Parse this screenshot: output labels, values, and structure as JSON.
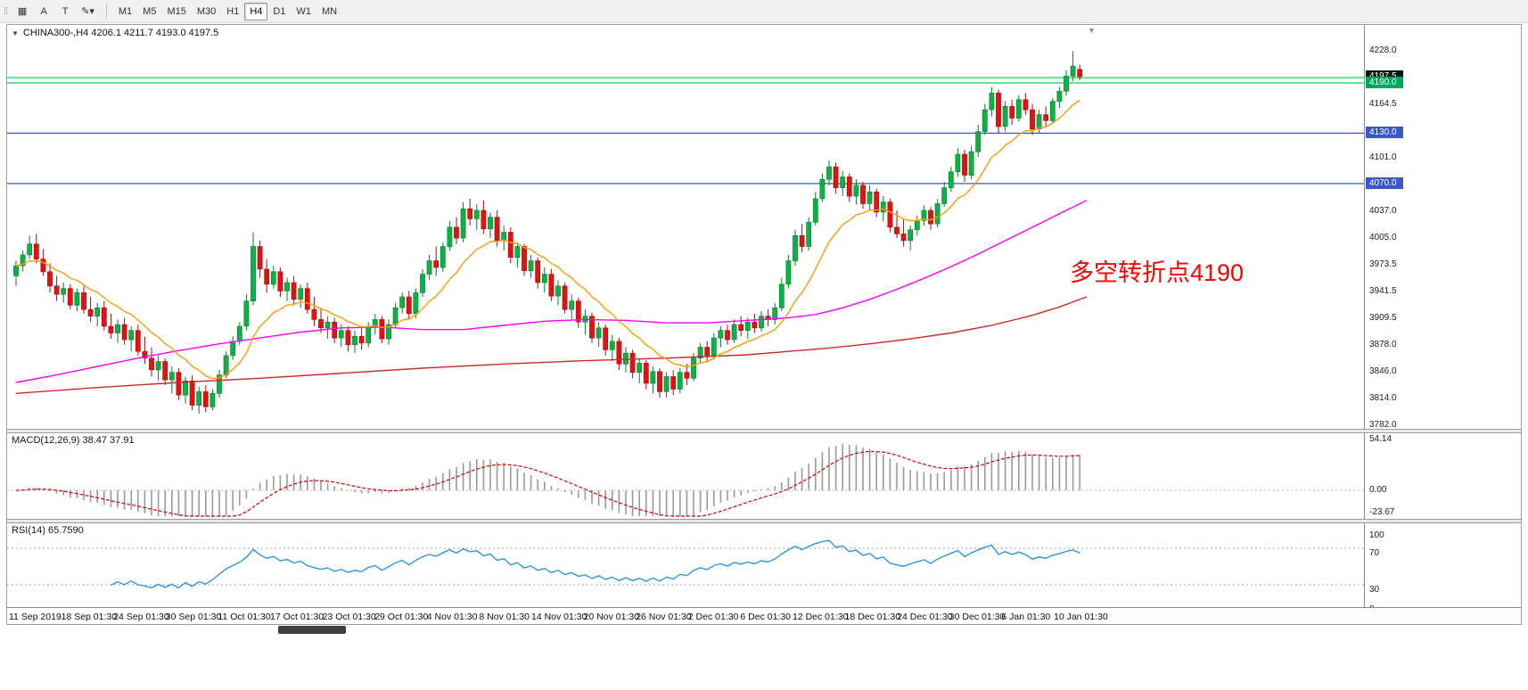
{
  "toolbar": {
    "grip": "⁞⁞",
    "buttons": [
      {
        "name": "symbols-grid-button",
        "glyph": "▦"
      },
      {
        "name": "cursor-tool-button",
        "glyph": "A"
      },
      {
        "name": "text-tool-button",
        "glyph": "T"
      },
      {
        "name": "draw-color-button",
        "glyph": "✎",
        "caret": "▾"
      }
    ],
    "timeframes": [
      {
        "label": "M1",
        "active": false
      },
      {
        "label": "M5",
        "active": false
      },
      {
        "label": "M15",
        "active": false
      },
      {
        "label": "M30",
        "active": false
      },
      {
        "label": "H1",
        "active": false
      },
      {
        "label": "H4",
        "active": true
      },
      {
        "label": "D1",
        "active": false
      },
      {
        "label": "W1",
        "active": false
      },
      {
        "label": "MN",
        "active": false
      }
    ]
  },
  "chart": {
    "title": "CHINA300-,H4 4206.1 4211.7 4193.0 4197.5",
    "icons": {
      "collapse": "▼",
      "shift_marker": "▼"
    },
    "annotation": {
      "text": "多空转折点4190",
      "color": "#ff0000"
    },
    "price_axis": {
      "labels": [
        {
          "text": "4228.0",
          "value": 4228.0
        },
        {
          "text": "4164.5",
          "value": 4164.5
        },
        {
          "text": "4101.0",
          "value": 4101.0
        },
        {
          "text": "4037.0",
          "value": 4037.0
        },
        {
          "text": "4005.0",
          "value": 4005.0
        },
        {
          "text": "3973.5",
          "value": 3973.5
        },
        {
          "text": "3941.5",
          "value": 3941.5
        },
        {
          "text": "3909.5",
          "value": 3909.5
        },
        {
          "text": "3878.0",
          "value": 3878.0
        },
        {
          "text": "3846.0",
          "value": 3846.0
        },
        {
          "text": "3814.0",
          "value": 3814.0
        },
        {
          "text": "3782.0",
          "value": 3782.0
        }
      ],
      "tags": [
        {
          "text": "4197.5",
          "value": 4197.5,
          "bg": "#111111"
        },
        {
          "text": "4190.0",
          "value": 4190.0,
          "bg": "#00a85a"
        },
        {
          "text": "4130.0",
          "value": 4130.0,
          "bg": "#3a57c8"
        },
        {
          "text": "4070.0",
          "value": 4070.0,
          "bg": "#3a57c8"
        }
      ]
    }
  },
  "macd_panel": {
    "label": "MACD(12,26,9) 38.47 37.91",
    "axis": [
      {
        "text": "54.14",
        "value": 54.14
      },
      {
        "text": "0.00",
        "value": 0
      },
      {
        "text": "-23.67",
        "value": -23.67
      }
    ]
  },
  "rsi_panel": {
    "label": "RSI(14) 65.7590",
    "axis": [
      {
        "text": "100",
        "value": 100
      },
      {
        "text": "70",
        "value": 70
      },
      {
        "text": "30",
        "value": 30
      },
      {
        "text": "0",
        "value": 0
      }
    ]
  },
  "time_axis": {
    "labels": [
      "11 Sep 2019",
      "18 Sep 01:30",
      "24 Sep 01:30",
      "30 Sep 01:30",
      "11 Oct 01:30",
      "17 Oct 01:30",
      "23 Oct 01:30",
      "29 Oct 01:30",
      "4 Nov 01:30",
      "8 Nov 01:30",
      "14 Nov 01:30",
      "20 Nov 01:30",
      "26 Nov 01:30",
      "2 Dec 01:30",
      "6 Dec 01:30",
      "12 Dec 01:30",
      "18 Dec 01:30",
      "24 Dec 01:30",
      "30 Dec 01:30",
      "6 Jan 01:30",
      "10 Jan 01:30"
    ]
  },
  "chart_data": {
    "type": "candlestick",
    "symbol": "CHINA300-",
    "timeframe": "H4",
    "price_range": [
      3781,
      4259
    ],
    "colors": {
      "up": "#0db145",
      "up_stroke": "#077d2b",
      "down": "#e01313",
      "down_stroke": "#a50d0d",
      "ma_orange": "#ff9c00",
      "ma_magenta": "#ff00ff",
      "ma_red": "#cc2a2a",
      "macd_hist": "#9a9a9a",
      "macd_signal": "#d40000",
      "rsi_line": "#2090e0",
      "rsi_level": "#9a9ac8",
      "hline_green": "#00d85e",
      "hline_blue": "#3a57c8"
    },
    "hlines": [
      {
        "value": 4196.2,
        "color": "#00d85e"
      },
      {
        "value": 4190.0,
        "color": "#00d85e"
      },
      {
        "value": 4130.0,
        "color": "#3a57c8"
      },
      {
        "value": 4070.0,
        "color": "#3a57c8"
      }
    ],
    "ohlc": [
      [
        3960,
        3978,
        3948,
        3972
      ],
      [
        3972,
        3990,
        3965,
        3985
      ],
      [
        3985,
        4008,
        3980,
        3998
      ],
      [
        3998,
        4010,
        3975,
        3980
      ],
      [
        3980,
        3992,
        3960,
        3965
      ],
      [
        3965,
        3975,
        3940,
        3948
      ],
      [
        3948,
        3960,
        3930,
        3938
      ],
      [
        3938,
        3952,
        3928,
        3945
      ],
      [
        3945,
        3950,
        3920,
        3925
      ],
      [
        3925,
        3945,
        3918,
        3940
      ],
      [
        3940,
        3948,
        3915,
        3920
      ],
      [
        3920,
        3935,
        3905,
        3912
      ],
      [
        3912,
        3928,
        3900,
        3922
      ],
      [
        3922,
        3930,
        3895,
        3900
      ],
      [
        3900,
        3915,
        3885,
        3892
      ],
      [
        3892,
        3908,
        3880,
        3902
      ],
      [
        3902,
        3910,
        3878,
        3884
      ],
      [
        3884,
        3900,
        3870,
        3895
      ],
      [
        3895,
        3902,
        3865,
        3870
      ],
      [
        3870,
        3888,
        3855,
        3862
      ],
      [
        3862,
        3875,
        3840,
        3848
      ],
      [
        3848,
        3865,
        3835,
        3858
      ],
      [
        3858,
        3862,
        3830,
        3836
      ],
      [
        3836,
        3852,
        3820,
        3845
      ],
      [
        3845,
        3850,
        3812,
        3818
      ],
      [
        3818,
        3840,
        3808,
        3835
      ],
      [
        3835,
        3842,
        3800,
        3806
      ],
      [
        3806,
        3828,
        3796,
        3822
      ],
      [
        3822,
        3830,
        3798,
        3804
      ],
      [
        3804,
        3825,
        3800,
        3820
      ],
      [
        3820,
        3848,
        3815,
        3842
      ],
      [
        3842,
        3870,
        3838,
        3865
      ],
      [
        3865,
        3888,
        3860,
        3882
      ],
      [
        3882,
        3905,
        3878,
        3900
      ],
      [
        3900,
        3938,
        3895,
        3930
      ],
      [
        3930,
        4012,
        3925,
        3995
      ],
      [
        3995,
        4002,
        3958,
        3968
      ],
      [
        3968,
        3980,
        3940,
        3950
      ],
      [
        3950,
        3972,
        3945,
        3965
      ],
      [
        3965,
        3970,
        3935,
        3942
      ],
      [
        3942,
        3958,
        3930,
        3952
      ],
      [
        3952,
        3960,
        3925,
        3932
      ],
      [
        3932,
        3950,
        3922,
        3945
      ],
      [
        3945,
        3952,
        3915,
        3920
      ],
      [
        3920,
        3935,
        3900,
        3908
      ],
      [
        3908,
        3922,
        3892,
        3898
      ],
      [
        3898,
        3912,
        3885,
        3905
      ],
      [
        3905,
        3910,
        3880,
        3886
      ],
      [
        3886,
        3902,
        3875,
        3895
      ],
      [
        3895,
        3900,
        3870,
        3878
      ],
      [
        3878,
        3895,
        3868,
        3888
      ],
      [
        3888,
        3898,
        3872,
        3880
      ],
      [
        3880,
        3905,
        3875,
        3900
      ],
      [
        3900,
        3915,
        3890,
        3908
      ],
      [
        3908,
        3912,
        3880,
        3885
      ],
      [
        3885,
        3908,
        3878,
        3902
      ],
      [
        3902,
        3928,
        3898,
        3922
      ],
      [
        3922,
        3940,
        3915,
        3935
      ],
      [
        3935,
        3942,
        3908,
        3915
      ],
      [
        3915,
        3945,
        3910,
        3940
      ],
      [
        3940,
        3968,
        3935,
        3962
      ],
      [
        3962,
        3985,
        3955,
        3978
      ],
      [
        3978,
        3995,
        3960,
        3970
      ],
      [
        3970,
        4000,
        3965,
        3995
      ],
      [
        3995,
        4025,
        3990,
        4018
      ],
      [
        4018,
        4030,
        3998,
        4005
      ],
      [
        4005,
        4048,
        4000,
        4040
      ],
      [
        4040,
        4052,
        4020,
        4028
      ],
      [
        4028,
        4045,
        4015,
        4038
      ],
      [
        4038,
        4050,
        4010,
        4016
      ],
      [
        4016,
        4035,
        4005,
        4030
      ],
      [
        4030,
        4038,
        3995,
        4002
      ],
      [
        4002,
        4020,
        3990,
        4012
      ],
      [
        4012,
        4018,
        3975,
        3982
      ],
      [
        3982,
        4000,
        3970,
        3995
      ],
      [
        3995,
        3998,
        3960,
        3966
      ],
      [
        3966,
        3985,
        3958,
        3978
      ],
      [
        3978,
        3982,
        3945,
        3952
      ],
      [
        3952,
        3970,
        3940,
        3962
      ],
      [
        3962,
        3968,
        3930,
        3936
      ],
      [
        3936,
        3955,
        3925,
        3948
      ],
      [
        3948,
        3952,
        3915,
        3920
      ],
      [
        3920,
        3938,
        3908,
        3930
      ],
      [
        3930,
        3934,
        3898,
        3905
      ],
      [
        3905,
        3920,
        3890,
        3912
      ],
      [
        3912,
        3916,
        3880,
        3886
      ],
      [
        3886,
        3905,
        3875,
        3898
      ],
      [
        3898,
        3902,
        3865,
        3872
      ],
      [
        3872,
        3890,
        3858,
        3882
      ],
      [
        3882,
        3886,
        3848,
        3855
      ],
      [
        3855,
        3875,
        3845,
        3868
      ],
      [
        3868,
        3872,
        3838,
        3845
      ],
      [
        3845,
        3862,
        3832,
        3856
      ],
      [
        3856,
        3860,
        3825,
        3832
      ],
      [
        3832,
        3852,
        3820,
        3846
      ],
      [
        3846,
        3850,
        3815,
        3822
      ],
      [
        3822,
        3845,
        3815,
        3840
      ],
      [
        3840,
        3848,
        3818,
        3825
      ],
      [
        3825,
        3850,
        3820,
        3845
      ],
      [
        3845,
        3855,
        3830,
        3838
      ],
      [
        3838,
        3868,
        3835,
        3862
      ],
      [
        3862,
        3880,
        3855,
        3875
      ],
      [
        3875,
        3882,
        3858,
        3865
      ],
      [
        3865,
        3892,
        3860,
        3886
      ],
      [
        3886,
        3900,
        3875,
        3895
      ],
      [
        3895,
        3902,
        3878,
        3884
      ],
      [
        3884,
        3908,
        3880,
        3902
      ],
      [
        3902,
        3912,
        3888,
        3895
      ],
      [
        3895,
        3910,
        3885,
        3905
      ],
      [
        3905,
        3915,
        3892,
        3898
      ],
      [
        3898,
        3918,
        3894,
        3912
      ],
      [
        3912,
        3920,
        3900,
        3908
      ],
      [
        3908,
        3928,
        3902,
        3922
      ],
      [
        3922,
        3958,
        3918,
        3950
      ],
      [
        3950,
        3985,
        3945,
        3978
      ],
      [
        3978,
        4015,
        3972,
        4008
      ],
      [
        4008,
        4022,
        3988,
        3995
      ],
      [
        3995,
        4030,
        3990,
        4024
      ],
      [
        4024,
        4060,
        4020,
        4052
      ],
      [
        4052,
        4082,
        4048,
        4075
      ],
      [
        4075,
        4098,
        4068,
        4090
      ],
      [
        4090,
        4095,
        4058,
        4065
      ],
      [
        4065,
        4085,
        4055,
        4078
      ],
      [
        4078,
        4082,
        4048,
        4055
      ],
      [
        4055,
        4075,
        4045,
        4068
      ],
      [
        4068,
        4072,
        4040,
        4046
      ],
      [
        4046,
        4068,
        4038,
        4060
      ],
      [
        4060,
        4064,
        4030,
        4036
      ],
      [
        4036,
        4055,
        4025,
        4048
      ],
      [
        4048,
        4052,
        4012,
        4018
      ],
      [
        4018,
        4038,
        4005,
        4010
      ],
      [
        4010,
        4028,
        3995,
        4002
      ],
      [
        4002,
        4020,
        3990,
        4015
      ],
      [
        4015,
        4032,
        4008,
        4026
      ],
      [
        4026,
        4044,
        4020,
        4038
      ],
      [
        4038,
        4042,
        4015,
        4022
      ],
      [
        4022,
        4052,
        4018,
        4046
      ],
      [
        4046,
        4072,
        4042,
        4065
      ],
      [
        4065,
        4090,
        4060,
        4084
      ],
      [
        4084,
        4112,
        4078,
        4105
      ],
      [
        4105,
        4110,
        4072,
        4080
      ],
      [
        4080,
        4115,
        4075,
        4108
      ],
      [
        4108,
        4140,
        4102,
        4132
      ],
      [
        4132,
        4165,
        4128,
        4158
      ],
      [
        4158,
        4185,
        4150,
        4178
      ],
      [
        4178,
        4182,
        4130,
        4138
      ],
      [
        4138,
        4168,
        4132,
        4162
      ],
      [
        4162,
        4170,
        4140,
        4148
      ],
      [
        4148,
        4175,
        4144,
        4170
      ],
      [
        4170,
        4178,
        4152,
        4158
      ],
      [
        4158,
        4165,
        4128,
        4135
      ],
      [
        4135,
        4158,
        4130,
        4152
      ],
      [
        4152,
        4162,
        4138,
        4145
      ],
      [
        4145,
        4172,
        4142,
        4168
      ],
      [
        4168,
        4185,
        4160,
        4180
      ],
      [
        4180,
        4205,
        4175,
        4198
      ],
      [
        4198,
        4228,
        4192,
        4210
      ],
      [
        4206.1,
        4211.7,
        4193.0,
        4197.5
      ]
    ],
    "moving_averages": {
      "orange_fast": {
        "method": "ema",
        "period": 12,
        "color": "#ff9c00"
      },
      "magenta_mid": {
        "color": "#ff00ff",
        "points": [
          [
            0,
            3833
          ],
          [
            6,
            3842
          ],
          [
            12,
            3852
          ],
          [
            18,
            3862
          ],
          [
            24,
            3871
          ],
          [
            30,
            3879
          ],
          [
            36,
            3886
          ],
          [
            42,
            3893
          ],
          [
            48,
            3898
          ],
          [
            54,
            3899
          ],
          [
            60,
            3896
          ],
          [
            66,
            3896
          ],
          [
            72,
            3901
          ],
          [
            78,
            3906
          ],
          [
            84,
            3908
          ],
          [
            90,
            3907
          ],
          [
            96,
            3904
          ],
          [
            102,
            3904
          ],
          [
            108,
            3907
          ],
          [
            114,
            3910
          ],
          [
            118,
            3914
          ],
          [
            122,
            3922
          ],
          [
            126,
            3932
          ],
          [
            130,
            3944
          ],
          [
            134,
            3957
          ],
          [
            138,
            3971
          ],
          [
            142,
            3986
          ],
          [
            146,
            4002
          ],
          [
            150,
            4018
          ],
          [
            154,
            4034
          ],
          [
            158,
            4050
          ]
        ]
      },
      "red_slow": {
        "color": "#cc2a2a",
        "points": [
          [
            0,
            3820
          ],
          [
            12,
            3827
          ],
          [
            24,
            3833
          ],
          [
            36,
            3838
          ],
          [
            48,
            3844
          ],
          [
            60,
            3850
          ],
          [
            72,
            3855
          ],
          [
            84,
            3859
          ],
          [
            96,
            3862
          ],
          [
            108,
            3866
          ],
          [
            120,
            3874
          ],
          [
            126,
            3879
          ],
          [
            132,
            3885
          ],
          [
            138,
            3892
          ],
          [
            144,
            3901
          ],
          [
            150,
            3913
          ],
          [
            154,
            3923
          ],
          [
            158,
            3935
          ]
        ]
      }
    },
    "indicators": {
      "macd": {
        "params": [
          12,
          26,
          9
        ],
        "last_values": [
          38.47,
          37.91
        ],
        "axis_range": [
          -23.67,
          54.14
        ]
      },
      "rsi": {
        "period": 14,
        "last_value": 65.759,
        "levels": [
          70,
          30
        ]
      }
    }
  }
}
